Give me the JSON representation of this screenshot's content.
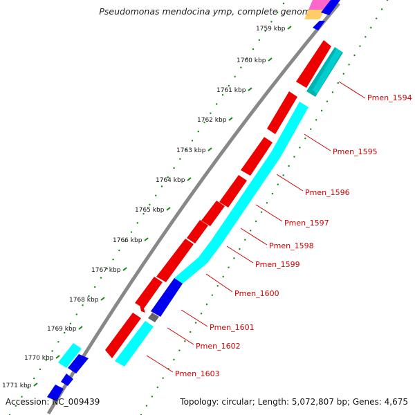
{
  "title": "Pseudomonas mendocina ymp, complete genome",
  "accession": "Accession: NC_009439",
  "summary": "Topology: circular; Length: 5,072,807 bp; Genes: 4,675",
  "kbp_labels": [
    "1759 kbp",
    "1760 kbp",
    "1761 kbp",
    "1762 kbp",
    "1763 kbp",
    "1764 kbp",
    "1765 kbp",
    "1766 kbp",
    "1767 kbp",
    "1768 kbp",
    "1769 kbp",
    "1770 kbp",
    "1771 kbp"
  ],
  "gene_labels": [
    "Pmen_1594",
    "Pmen_1595",
    "Pmen_1596",
    "Pmen_1597",
    "Pmen_1598",
    "Pmen_1599",
    "Pmen_1600",
    "Pmen_1601",
    "Pmen_1602",
    "Pmen_1603"
  ],
  "colors": {
    "forward_feature": "#ee0000",
    "reverse_feature": "#00ffff",
    "reverse_dark": "#00b3b3",
    "other_feature": "#0000ee",
    "backbone": "#888888",
    "ticks": "#118811",
    "label": "#cc0000"
  }
}
